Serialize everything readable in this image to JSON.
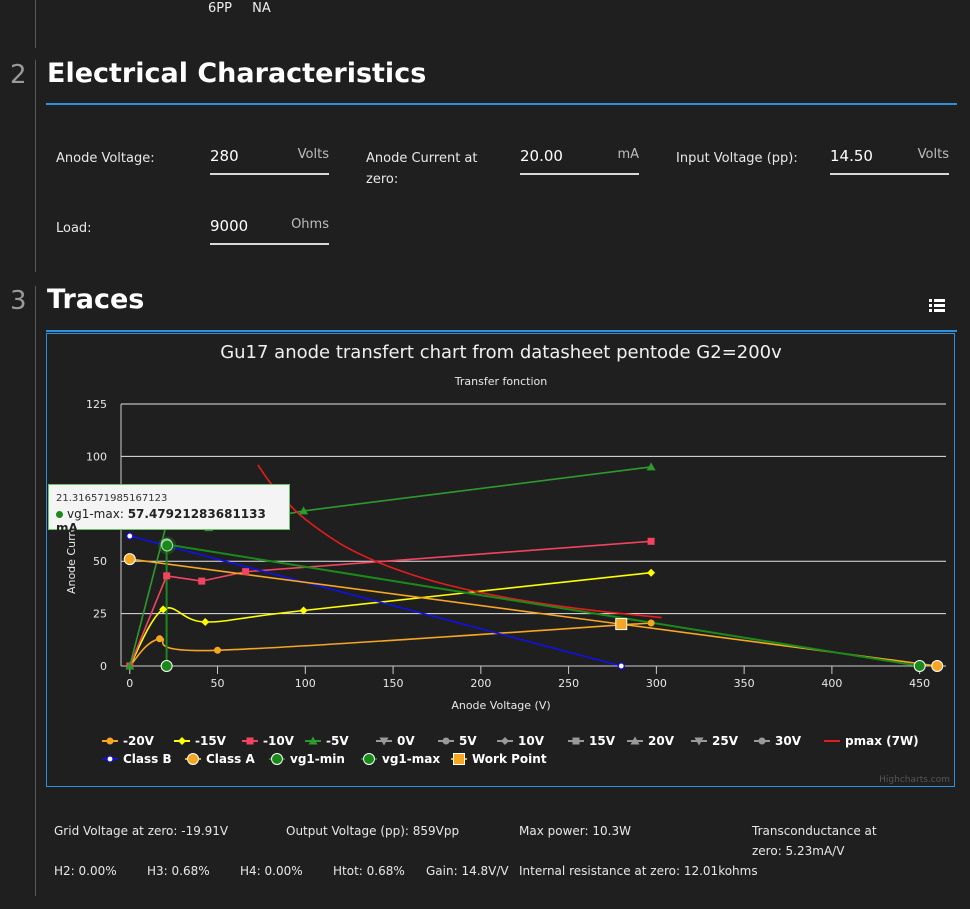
{
  "top_row": {
    "col1": "6PP",
    "col2": "NA"
  },
  "sections": {
    "electrical": {
      "number": "2",
      "title": "Electrical Characteristics"
    },
    "traces": {
      "number": "3",
      "title": "Traces"
    }
  },
  "fields": {
    "anode_voltage": {
      "label": "Anode Voltage:",
      "value": "280",
      "unit": "Volts"
    },
    "anode_current": {
      "label": "Anode Current at zero:",
      "value": "20.00",
      "unit": "mA"
    },
    "input_voltage": {
      "label": "Input Voltage (pp):",
      "value": "14.50",
      "unit": "Volts"
    },
    "load": {
      "label": "Load:",
      "value": "9000",
      "unit": "Ohms"
    }
  },
  "tooltip": {
    "x_text": "21.316571985167123",
    "series": "vg1-max",
    "value": "57.47921283681133 mA"
  },
  "results": {
    "grid_voltage": "Grid Voltage at zero:  -19.91V",
    "output_voltage": "Output Voltage (pp):  859Vpp",
    "max_power": "Max power:  10.3W",
    "transconductance_1": "Transconductance at",
    "transconductance_2": "zero:  5.23mA/V",
    "h2": "H2:  0.00%",
    "h3": "H3:  0.68%",
    "h4": "H4:  0.00%",
    "htot": "Htot:  0.68%",
    "gain": "Gain:  14.8V/V",
    "internal_resistance": "Internal resistance at zero:  12.01kohms"
  },
  "chart_data": {
    "type": "line",
    "title": "Gu17 anode transfert chart from datasheet pentode G2=200v",
    "subtitle": "Transfer fonction",
    "xlabel": "Anode Voltage (V)",
    "ylabel": "Anode Current (mA)",
    "xlim": [
      -5,
      465
    ],
    "ylim": [
      0,
      125
    ],
    "x_ticks": [
      0,
      50,
      100,
      150,
      200,
      250,
      300,
      350,
      400,
      450
    ],
    "y_ticks": [
      0,
      25,
      50,
      100,
      125
    ],
    "credits": "Highcharts.com",
    "legend_position": "bottom",
    "series": [
      {
        "name": "-20V",
        "color": "#f5a623",
        "marker": "circle",
        "smooth": true,
        "visible": true,
        "points": [
          [
            0,
            0
          ],
          [
            17,
            13
          ],
          [
            50,
            7.5
          ],
          [
            297,
            20.5
          ]
        ]
      },
      {
        "name": "-15V",
        "color": "#ffff00",
        "marker": "diamond",
        "smooth": true,
        "visible": true,
        "points": [
          [
            0,
            0
          ],
          [
            19,
            27
          ],
          [
            43,
            21
          ],
          [
            99,
            26.5
          ],
          [
            297,
            44.5
          ]
        ]
      },
      {
        "name": "-10V",
        "color": "#f2445e",
        "marker": "square",
        "smooth": false,
        "visible": true,
        "points": [
          [
            0,
            0
          ],
          [
            21,
            43
          ],
          [
            41,
            40.5
          ],
          [
            66,
            45
          ],
          [
            297,
            59.5
          ]
        ]
      },
      {
        "name": "-5V",
        "color": "#2e9a2e",
        "marker": "triangle",
        "smooth": false,
        "visible": true,
        "points": [
          [
            0,
            0
          ],
          [
            21,
            68
          ],
          [
            45,
            66
          ],
          [
            99,
            74
          ],
          [
            297,
            95
          ]
        ]
      },
      {
        "name": "0V",
        "color": "#aaaaaa",
        "marker": "triangle-down",
        "visible": false,
        "points": []
      },
      {
        "name": "5V",
        "color": "#aaaaaa",
        "marker": "circle",
        "visible": false,
        "points": []
      },
      {
        "name": "10V",
        "color": "#aaaaaa",
        "marker": "diamond",
        "visible": false,
        "points": []
      },
      {
        "name": "15V",
        "color": "#aaaaaa",
        "marker": "square",
        "visible": false,
        "points": []
      },
      {
        "name": "20V",
        "color": "#aaaaaa",
        "marker": "triangle",
        "visible": false,
        "points": []
      },
      {
        "name": "25V",
        "color": "#aaaaaa",
        "marker": "triangle-down",
        "visible": false,
        "points": []
      },
      {
        "name": "30V",
        "color": "#aaaaaa",
        "marker": "circle",
        "visible": false,
        "points": []
      },
      {
        "name": "pmax (7W)",
        "color": "#e51c1c",
        "marker": "none",
        "smooth": true,
        "visible": true,
        "points": [
          [
            73,
            95.9
          ],
          [
            80,
            87.5
          ],
          [
            90,
            77.8
          ],
          [
            100,
            70
          ],
          [
            120,
            58.3
          ],
          [
            140,
            50
          ],
          [
            160,
            43.8
          ],
          [
            180,
            38.9
          ],
          [
            200,
            35
          ],
          [
            225,
            31.1
          ],
          [
            250,
            28
          ],
          [
            275,
            25.5
          ],
          [
            303,
            23.1
          ]
        ]
      },
      {
        "name": "Class B",
        "color": "#1010ee",
        "marker": "circle-hollow",
        "smooth": false,
        "visible": true,
        "points": [
          [
            0,
            62
          ],
          [
            280,
            0
          ]
        ]
      },
      {
        "name": "Class A",
        "color": "#f5a623",
        "marker": "circle-big",
        "smooth": false,
        "visible": true,
        "points": [
          [
            0,
            51
          ],
          [
            460,
            0
          ]
        ]
      },
      {
        "name": "vg1-min",
        "color": "#1a8a1a",
        "marker": "circle-big",
        "smooth": false,
        "visible": true,
        "points": [
          [
            21,
            0
          ],
          [
            21,
            58
          ],
          [
            450,
            0
          ]
        ]
      },
      {
        "name": "vg1-max",
        "color": "#1a8a1a",
        "marker": "circle-big",
        "smooth": false,
        "visible": true,
        "points": [
          [
            21.3,
            57.5
          ]
        ]
      },
      {
        "name": "Work Point",
        "color": "#f5a623",
        "marker": "square-big",
        "smooth": false,
        "visible": true,
        "points": [
          [
            280,
            20
          ]
        ]
      }
    ]
  }
}
